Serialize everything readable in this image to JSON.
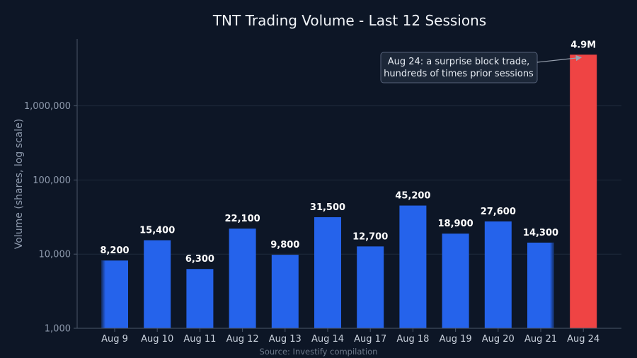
{
  "chart_data": {
    "type": "bar",
    "title": "TNT Trading Volume - Last 12 Sessions",
    "ylabel": "Volume (shares, log scale)",
    "xlabel": "",
    "yscale": "log",
    "ylim": [
      1000,
      5000000
    ],
    "yticks": [
      1000,
      10000,
      100000,
      1000000
    ],
    "ytick_labels": [
      "1,000",
      "10,000",
      "100,000",
      "1,000,000"
    ],
    "grid": true,
    "categories": [
      "Aug 9",
      "Aug 10",
      "Aug 11",
      "Aug 12",
      "Aug 13",
      "Aug 14",
      "Aug 17",
      "Aug 18",
      "Aug 19",
      "Aug 20",
      "Aug 21",
      "Aug 24"
    ],
    "values": [
      8200,
      15400,
      6300,
      22100,
      9800,
      31500,
      12700,
      45200,
      18900,
      27600,
      14300,
      4900000
    ],
    "data_labels": [
      "8,200",
      "15,400",
      "6,300",
      "22,100",
      "9,800",
      "31,500",
      "12,700",
      "45,200",
      "18,900",
      "27,600",
      "14,300",
      "4.9M"
    ],
    "colors": {
      "normal": "#2563eb",
      "highlight": "#ef4444",
      "background": "#0d1626"
    },
    "highlight_index": 11,
    "annotation": {
      "target_index": 11,
      "lines": [
        "Aug 24: a surprise block trade,",
        "hundreds of times prior sessions"
      ]
    },
    "source": "Source: Investify compilation"
  }
}
